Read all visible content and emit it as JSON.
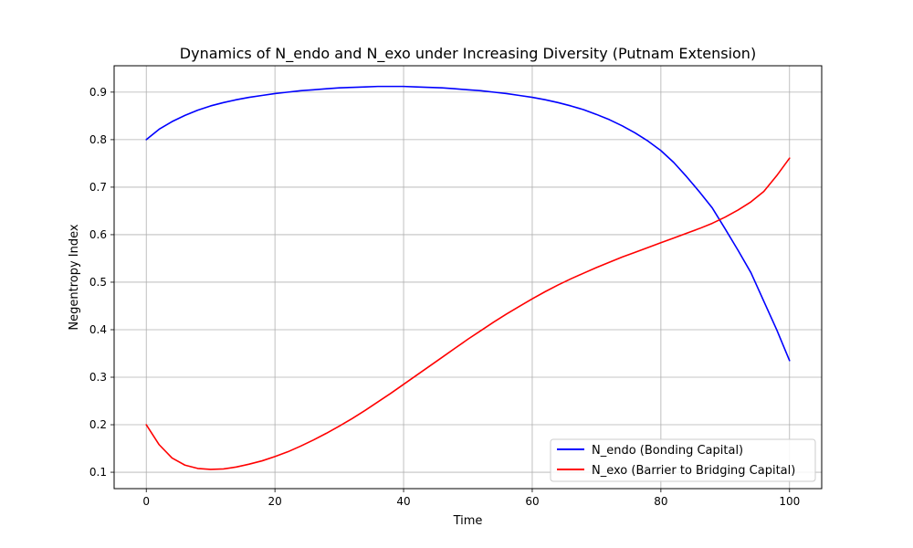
{
  "chart_data": {
    "type": "line",
    "title": "Dynamics of N_endo and N_exo under Increasing Diversity (Putnam Extension)",
    "xlabel": "Time",
    "ylabel": "Negentropy Index",
    "xlim": [
      -5,
      105
    ],
    "ylim": [
      0.0655,
      0.9555
    ],
    "xticks": [
      0,
      20,
      40,
      60,
      80,
      100
    ],
    "yticks": [
      0.1,
      0.2,
      0.3,
      0.4,
      0.5,
      0.6,
      0.7,
      0.8,
      0.9
    ],
    "xtick_labels": [
      "0",
      "20",
      "40",
      "60",
      "80",
      "100"
    ],
    "ytick_labels": [
      "0.1",
      "0.2",
      "0.3",
      "0.4",
      "0.5",
      "0.6",
      "0.7",
      "0.8",
      "0.9"
    ],
    "grid": true,
    "legend_position": "lower-right",
    "series": [
      {
        "name": "N_endo (Bonding Capital)",
        "color": "#0000ff",
        "x": [
          0,
          2,
          4,
          6,
          8,
          10,
          12,
          14,
          16,
          18,
          20,
          22,
          24,
          26,
          28,
          30,
          32,
          34,
          36,
          38,
          40,
          42,
          44,
          46,
          48,
          50,
          52,
          54,
          56,
          58,
          60,
          62,
          64,
          66,
          68,
          70,
          72,
          74,
          76,
          78,
          80,
          82,
          84,
          86,
          88,
          90,
          92,
          94,
          96,
          98,
          100
        ],
        "y": [
          0.8,
          0.822,
          0.838,
          0.851,
          0.862,
          0.871,
          0.878,
          0.884,
          0.889,
          0.893,
          0.897,
          0.9,
          0.903,
          0.905,
          0.907,
          0.909,
          0.91,
          0.911,
          0.912,
          0.912,
          0.912,
          0.911,
          0.91,
          0.909,
          0.907,
          0.905,
          0.903,
          0.9,
          0.897,
          0.893,
          0.889,
          0.884,
          0.878,
          0.871,
          0.863,
          0.853,
          0.842,
          0.829,
          0.814,
          0.797,
          0.777,
          0.752,
          0.722,
          0.69,
          0.656,
          0.612,
          0.567,
          0.52,
          0.46,
          0.4,
          0.335
        ]
      },
      {
        "name": "N_exo (Barrier to Bridging Capital)",
        "color": "#ff0000",
        "x": [
          0,
          2,
          4,
          6,
          8,
          10,
          12,
          14,
          16,
          18,
          20,
          22,
          24,
          26,
          28,
          30,
          32,
          34,
          36,
          38,
          40,
          42,
          44,
          46,
          48,
          50,
          52,
          54,
          56,
          58,
          60,
          62,
          64,
          66,
          68,
          70,
          72,
          74,
          76,
          78,
          80,
          82,
          84,
          86,
          88,
          90,
          92,
          94,
          96,
          98,
          100
        ],
        "y": [
          0.2,
          0.158,
          0.13,
          0.115,
          0.108,
          0.106,
          0.107,
          0.111,
          0.117,
          0.124,
          0.133,
          0.143,
          0.155,
          0.168,
          0.182,
          0.197,
          0.213,
          0.23,
          0.248,
          0.266,
          0.285,
          0.304,
          0.323,
          0.342,
          0.361,
          0.38,
          0.398,
          0.416,
          0.433,
          0.449,
          0.465,
          0.48,
          0.494,
          0.507,
          0.519,
          0.531,
          0.542,
          0.553,
          0.563,
          0.573,
          0.583,
          0.593,
          0.603,
          0.613,
          0.624,
          0.637,
          0.652,
          0.669,
          0.691,
          0.724,
          0.761
        ]
      }
    ]
  }
}
